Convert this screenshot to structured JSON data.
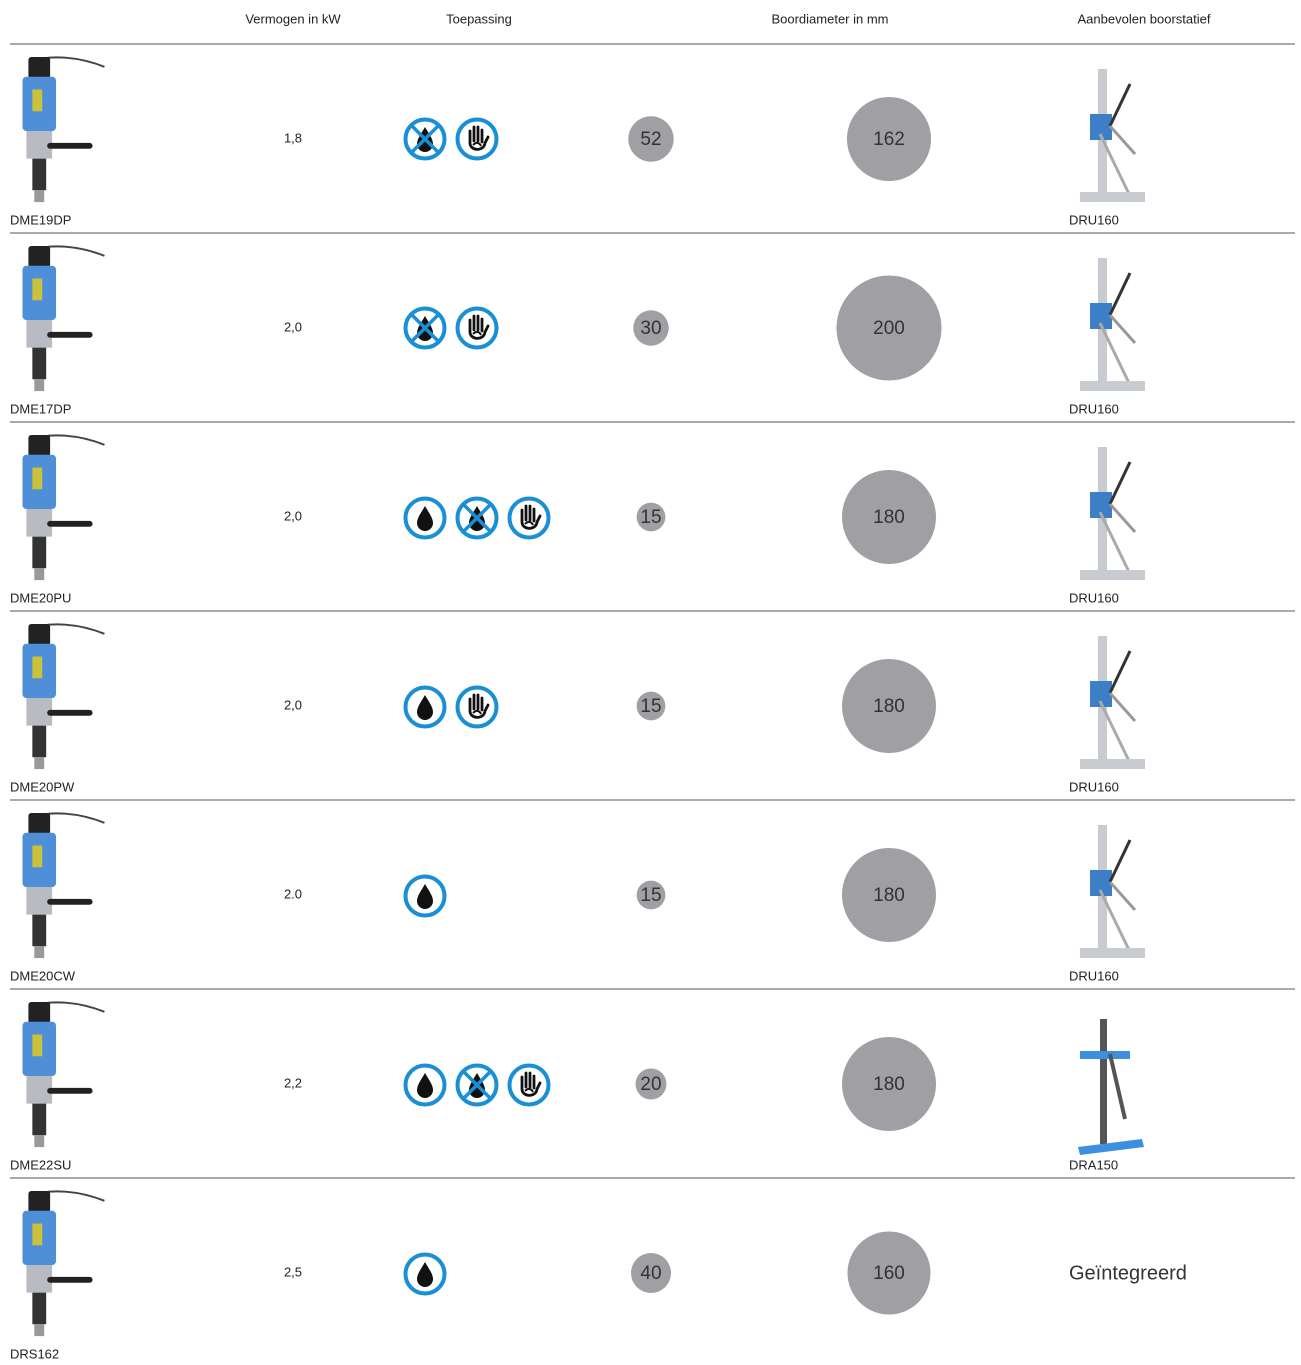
{
  "header": {
    "power": "Vermogen in kW",
    "application": "Toepassing",
    "diameter": "Boordiameter in mm",
    "stand": "Aanbevolen boorstatief"
  },
  "rows": [
    {
      "model": "DME19DP",
      "power": "1,8",
      "diameter_min": 52,
      "diameter_max": 162,
      "stand": "DRU160"
    },
    {
      "model": "DME17DP",
      "power": "2,0",
      "diameter_min": 30,
      "diameter_max": 200,
      "stand": "DRU160"
    },
    {
      "model": "DME20PU",
      "power": "2,0",
      "diameter_min": 15,
      "diameter_max": 180,
      "stand": "DRU160"
    },
    {
      "model": "DME20PW",
      "power": "2,0",
      "diameter_min": 15,
      "diameter_max": 180,
      "stand": "DRU160"
    },
    {
      "model": "DME20CW",
      "power": "2.0",
      "diameter_min": 15,
      "diameter_max": 180,
      "stand": "DRU160"
    },
    {
      "model": "DME22SU",
      "power": "2,2",
      "diameter_min": 20,
      "diameter_max": 180,
      "stand": "DRA150"
    },
    {
      "model": "DRS162",
      "power": "2,5",
      "diameter_min": 40,
      "diameter_max": 160,
      "stand": "Geïntegreerd"
    }
  ]
}
